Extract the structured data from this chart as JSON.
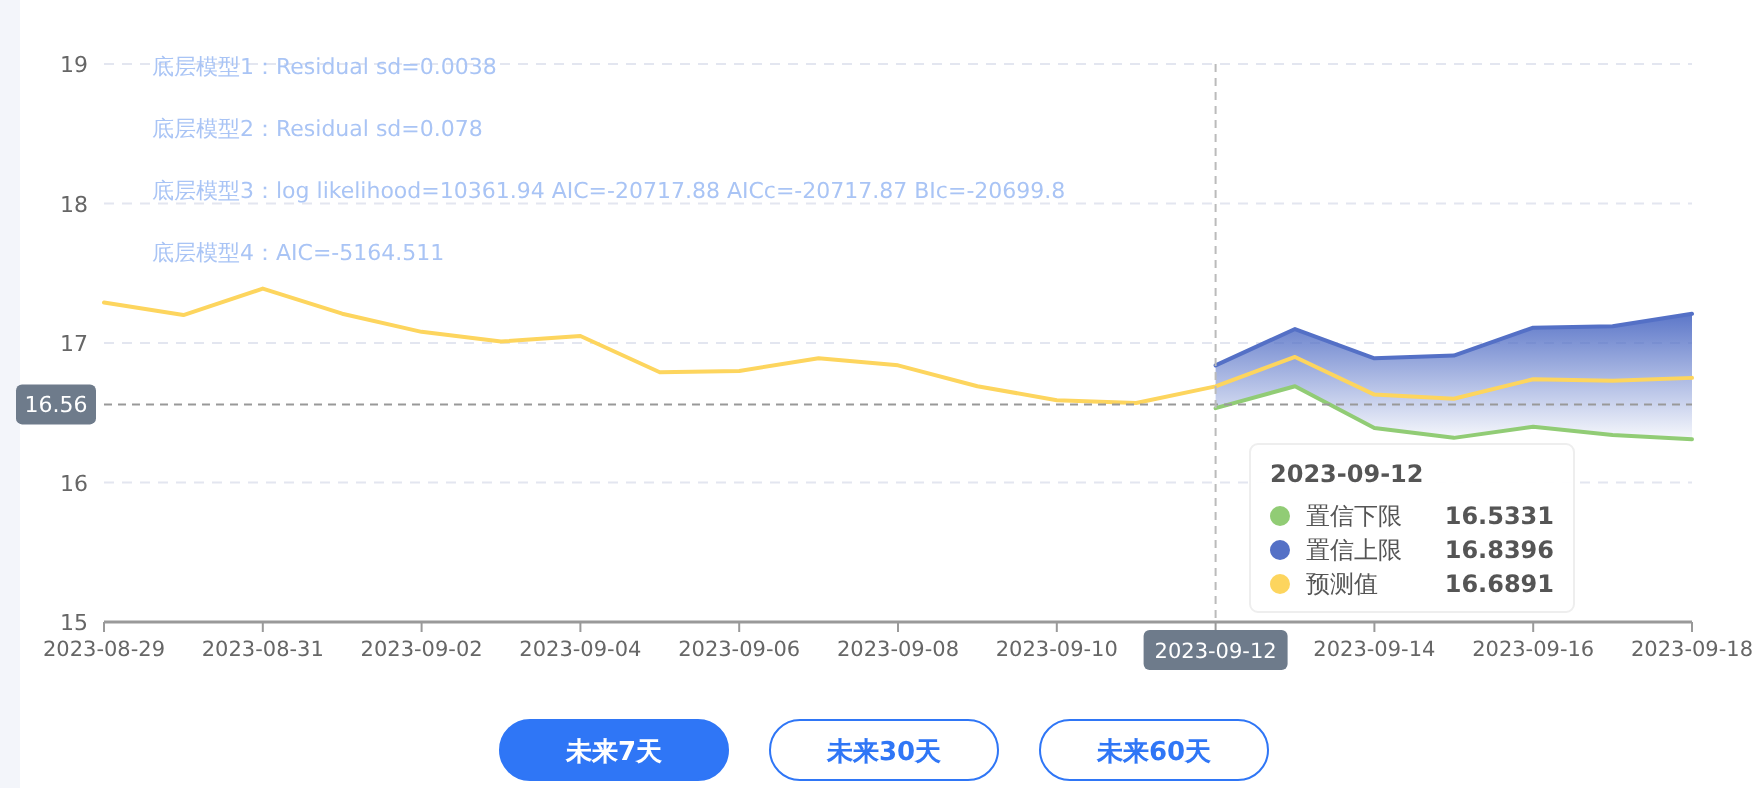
{
  "chart_data": {
    "type": "line",
    "x": [
      "2023-08-29",
      "2023-08-30",
      "2023-08-31",
      "2023-09-01",
      "2023-09-02",
      "2023-09-03",
      "2023-09-04",
      "2023-09-05",
      "2023-09-06",
      "2023-09-07",
      "2023-09-08",
      "2023-09-09",
      "2023-09-10",
      "2023-09-11",
      "2023-09-12",
      "2023-09-13",
      "2023-09-14",
      "2023-09-15",
      "2023-09-16",
      "2023-09-17",
      "2023-09-18"
    ],
    "series": [
      {
        "name": "置信下限",
        "color": "#91cc75",
        "values": [
          null,
          null,
          null,
          null,
          null,
          null,
          null,
          null,
          null,
          null,
          null,
          null,
          null,
          null,
          16.5331,
          16.69,
          16.39,
          16.32,
          16.4,
          16.34,
          16.31
        ]
      },
      {
        "name": "置信上限",
        "color": "#5470c6",
        "type": "area",
        "values": [
          null,
          null,
          null,
          null,
          null,
          null,
          null,
          null,
          null,
          null,
          null,
          null,
          null,
          null,
          16.8396,
          17.1,
          16.89,
          16.91,
          17.11,
          17.12,
          17.21
        ]
      },
      {
        "name": "预测值",
        "color": "#fdd55e",
        "values": [
          17.29,
          17.2,
          17.39,
          17.21,
          17.08,
          17.01,
          17.05,
          16.79,
          16.8,
          16.89,
          16.84,
          16.69,
          16.59,
          16.57,
          16.6891,
          16.9,
          16.63,
          16.6,
          16.74,
          16.73,
          16.75
        ]
      }
    ],
    "xlim": [
      "2023-08-29",
      "2023-09-18"
    ],
    "xticks": [
      "2023-08-29",
      "2023-08-31",
      "2023-09-02",
      "2023-09-04",
      "2023-09-06",
      "2023-09-08",
      "2023-09-10",
      {
        "value": "2023-09-12",
        "label": null
      },
      "2023-09-14",
      "2023-09-16",
      "2023-09-18"
    ],
    "ylim": [
      15,
      19
    ],
    "yticks": [
      15,
      16,
      17,
      18,
      19
    ],
    "grid": "y",
    "marker": "none",
    "line_style": "solid",
    "legend": "bottom right",
    "legend_title": "2023-09-12",
    "ref_lines": [
      {
        "axis": "y",
        "value": 16.56,
        "label": "16.56"
      },
      {
        "axis": "x",
        "value": "2023-09-12",
        "label": "2023-09-12"
      }
    ],
    "annotations": [
      "16.5331",
      "16.8396",
      "16.6891",
      "底层模型1：Residual sd=0.0038",
      "底层模型2：Residual sd=0.078",
      "底层模型3：log likelihood=10361.94 AIC=-20717.88 AICc=-20717.87 BIc=-20699.8",
      "底层模型4：AIC=-5164.511",
      "未来7天",
      "未来30天",
      "未来60天"
    ]
  }
}
